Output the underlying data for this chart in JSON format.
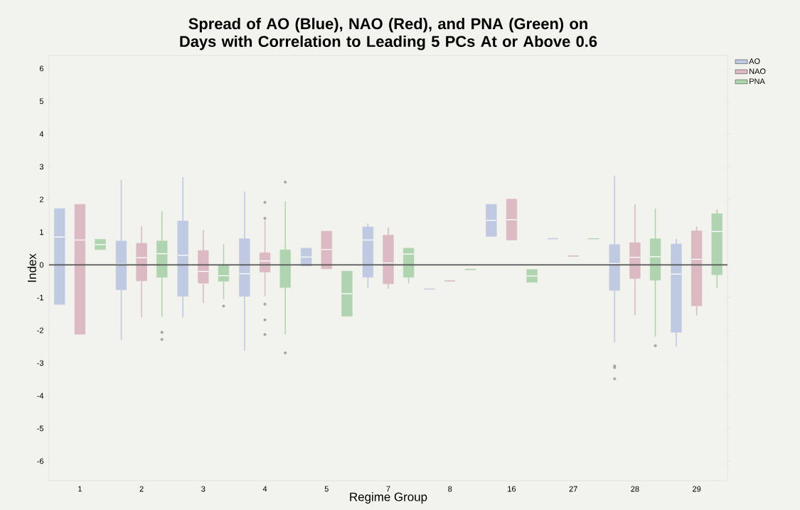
{
  "chart_data": {
    "type": "box",
    "title": "Spread of AO (Blue), NAO (Red), and PNA (Green) on Days with Correlation to Leading 5 PCs At or Above 0.6",
    "xlabel": "Regime Group",
    "ylabel": "Index",
    "categories": [
      "1",
      "2",
      "3",
      "4",
      "5",
      "7",
      "8",
      "16",
      "27",
      "28",
      "29"
    ],
    "ylim": [
      -6.6,
      6.4
    ],
    "yticks": [
      -6,
      -5,
      -4,
      -3,
      -2,
      -1,
      0,
      1,
      2,
      3,
      4,
      5,
      6
    ],
    "legend": "top right",
    "grid": false,
    "ref_lines": [
      {
        "axis": "y",
        "value": 0,
        "color": "#555555"
      }
    ],
    "series": [
      {
        "name": "AO",
        "color": "#bfc9e2",
        "boxes": [
          {
            "low": -1.21,
            "q1": -1.21,
            "median": 0.85,
            "q3": 1.72,
            "high": 1.72
          },
          {
            "low": -2.3,
            "q1": -0.76,
            "median": 0.02,
            "q3": 0.73,
            "high": 2.6
          },
          {
            "low": -1.61,
            "q1": -0.96,
            "median": 0.29,
            "q3": 1.34,
            "high": 2.68
          },
          {
            "low": -2.63,
            "q1": -0.96,
            "median": -0.27,
            "q3": 0.8,
            "high": 2.25
          },
          {
            "low": -0.03,
            "q1": -0.03,
            "median": 0.24,
            "q3": 0.51,
            "high": 0.51
          },
          {
            "low": -0.71,
            "q1": -0.38,
            "median": 0.76,
            "q3": 1.16,
            "high": 1.27
          },
          {
            "low": -0.74,
            "q1": -0.74,
            "median": -0.74,
            "q3": -0.74,
            "high": -0.74
          },
          {
            "low": 0.87,
            "q1": 0.87,
            "median": 1.36,
            "q3": 1.85,
            "high": 1.85
          },
          {
            "low": 0.8,
            "q1": 0.8,
            "median": 0.8,
            "q3": 0.8,
            "high": 0.8
          },
          {
            "low": -2.37,
            "q1": -0.78,
            "median": 0.04,
            "q3": 0.62,
            "high": 2.72,
            "outliers": [
              -3.09,
              -3.14,
              -3.48
            ]
          },
          {
            "low": -2.5,
            "q1": -2.06,
            "median": -0.28,
            "q3": 0.64,
            "high": 0.79
          }
        ]
      },
      {
        "name": "NAO",
        "color": "#dcbac4",
        "boxes": [
          {
            "low": -2.12,
            "q1": -2.12,
            "median": 0.76,
            "q3": 1.85,
            "high": 1.85
          },
          {
            "low": -1.61,
            "q1": -0.49,
            "median": 0.22,
            "q3": 0.66,
            "high": 1.18
          },
          {
            "low": -1.17,
            "q1": -0.56,
            "median": -0.2,
            "q3": 0.44,
            "high": 1.06
          },
          {
            "low": -0.96,
            "q1": -0.22,
            "median": 0.12,
            "q3": 0.37,
            "high": 1.35,
            "outliers": [
              1.91,
              1.42,
              -1.2,
              -1.68,
              -2.13
            ]
          },
          {
            "low": -0.12,
            "q1": -0.12,
            "median": 0.47,
            "q3": 1.03,
            "high": 1.03
          },
          {
            "low": -0.73,
            "q1": -0.58,
            "median": 0.06,
            "q3": 0.91,
            "high": 1.14
          },
          {
            "low": -0.49,
            "q1": -0.49,
            "median": -0.49,
            "q3": -0.49,
            "high": -0.49
          },
          {
            "low": 0.76,
            "q1": 0.76,
            "median": 1.38,
            "q3": 2.01,
            "high": 2.01
          },
          {
            "low": 0.27,
            "q1": 0.27,
            "median": 0.27,
            "q3": 0.27,
            "high": 0.27
          },
          {
            "low": -1.54,
            "q1": -0.42,
            "median": 0.23,
            "q3": 0.68,
            "high": 1.85
          },
          {
            "low": -1.54,
            "q1": -1.25,
            "median": 0.17,
            "q3": 1.04,
            "high": 1.17
          }
        ]
      },
      {
        "name": "PNA",
        "color": "#b0d4b0",
        "boxes": [
          {
            "low": 0.47,
            "q1": 0.47,
            "median": 0.62,
            "q3": 0.78,
            "high": 0.78
          },
          {
            "low": -1.59,
            "q1": -0.38,
            "median": 0.34,
            "q3": 0.73,
            "high": 1.65,
            "outliers": [
              -2.06,
              -2.28
            ]
          },
          {
            "low": -1.05,
            "q1": -0.5,
            "median": -0.33,
            "q3": -0.01,
            "high": 0.64,
            "outliers": [
              -1.26
            ]
          },
          {
            "low": -2.12,
            "q1": -0.69,
            "median": 0.0,
            "q3": 0.46,
            "high": 1.94,
            "outliers": [
              2.53,
              -2.69
            ]
          },
          {
            "low": -1.57,
            "q1": -1.57,
            "median": -0.88,
            "q3": -0.19,
            "high": -0.19
          },
          {
            "low": -0.56,
            "q1": -0.38,
            "median": 0.33,
            "q3": 0.51,
            "high": 0.51
          },
          {
            "low": -0.14,
            "q1": -0.14,
            "median": -0.14,
            "q3": -0.14,
            "high": -0.14
          },
          {
            "low": -0.53,
            "q1": -0.53,
            "median": -0.34,
            "q3": -0.14,
            "high": -0.14
          },
          {
            "low": 0.8,
            "q1": 0.8,
            "median": 0.8,
            "q3": 0.8,
            "high": 0.8
          },
          {
            "low": -2.19,
            "q1": -0.47,
            "median": 0.25,
            "q3": 0.8,
            "high": 1.72,
            "outliers": [
              -2.47
            ]
          },
          {
            "low": -0.71,
            "q1": -0.3,
            "median": 1.02,
            "q3": 1.56,
            "high": 1.69
          }
        ]
      }
    ]
  }
}
